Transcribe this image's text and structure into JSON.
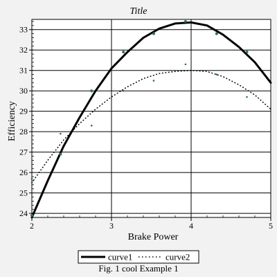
{
  "chart_data": {
    "type": "line",
    "title": "Title",
    "xlabel": "Brake Power",
    "ylabel": "Efficiency",
    "caption": "Fig. 1 cool  Example 1",
    "xlim": [
      2,
      5
    ],
    "ylim": [
      23.8,
      33.5
    ],
    "x_ticks": [
      "2",
      "3",
      "4",
      "5"
    ],
    "y_ticks": [
      "24",
      "25",
      "26",
      "27",
      "28",
      "29",
      "30",
      "31",
      "32",
      "33"
    ],
    "grid": true,
    "legend_position": "bottom-center",
    "series": [
      {
        "name": "curve1",
        "style": "solid",
        "color": "#000000",
        "marker_color": "#2f6f5f",
        "points": [
          {
            "x": 2.0,
            "y": 23.9
          },
          {
            "x": 2.36,
            "y": 26.9
          },
          {
            "x": 2.75,
            "y": 30.0
          },
          {
            "x": 3.15,
            "y": 31.9
          },
          {
            "x": 3.53,
            "y": 32.8
          },
          {
            "x": 3.93,
            "y": 33.4
          },
          {
            "x": 4.32,
            "y": 32.8
          },
          {
            "x": 4.7,
            "y": 31.9
          }
        ],
        "curve": [
          {
            "x": 2.0,
            "y": 23.8
          },
          {
            "x": 2.2,
            "y": 25.6
          },
          {
            "x": 2.4,
            "y": 27.3
          },
          {
            "x": 2.6,
            "y": 28.7
          },
          {
            "x": 2.8,
            "y": 30.0
          },
          {
            "x": 3.0,
            "y": 31.1
          },
          {
            "x": 3.2,
            "y": 31.9
          },
          {
            "x": 3.4,
            "y": 32.6
          },
          {
            "x": 3.6,
            "y": 33.05
          },
          {
            "x": 3.8,
            "y": 33.3
          },
          {
            "x": 4.0,
            "y": 33.35
          },
          {
            "x": 4.2,
            "y": 33.2
          },
          {
            "x": 4.4,
            "y": 32.75
          },
          {
            "x": 4.6,
            "y": 32.15
          },
          {
            "x": 4.8,
            "y": 31.4
          },
          {
            "x": 5.0,
            "y": 30.4
          }
        ]
      },
      {
        "name": "curve2",
        "style": "dotted",
        "color": "#000000",
        "marker_color": "#2f6f5f",
        "points": [
          {
            "x": 2.0,
            "y": 25.7
          },
          {
            "x": 2.36,
            "y": 27.9
          },
          {
            "x": 2.75,
            "y": 28.3
          },
          {
            "x": 3.15,
            "y": 30.0
          },
          {
            "x": 3.53,
            "y": 30.5
          },
          {
            "x": 3.93,
            "y": 31.3
          },
          {
            "x": 4.32,
            "y": 30.8
          },
          {
            "x": 4.7,
            "y": 29.7
          }
        ],
        "curve": [
          {
            "x": 2.0,
            "y": 25.5
          },
          {
            "x": 2.2,
            "y": 26.6
          },
          {
            "x": 2.4,
            "y": 27.6
          },
          {
            "x": 2.6,
            "y": 28.4
          },
          {
            "x": 2.8,
            "y": 29.1
          },
          {
            "x": 3.0,
            "y": 29.7
          },
          {
            "x": 3.2,
            "y": 30.2
          },
          {
            "x": 3.4,
            "y": 30.6
          },
          {
            "x": 3.6,
            "y": 30.85
          },
          {
            "x": 3.8,
            "y": 30.95
          },
          {
            "x": 4.0,
            "y": 31.0
          },
          {
            "x": 4.2,
            "y": 30.95
          },
          {
            "x": 4.4,
            "y": 30.7
          },
          {
            "x": 4.6,
            "y": 30.3
          },
          {
            "x": 4.8,
            "y": 29.8
          },
          {
            "x": 5.0,
            "y": 29.1
          }
        ]
      }
    ]
  }
}
